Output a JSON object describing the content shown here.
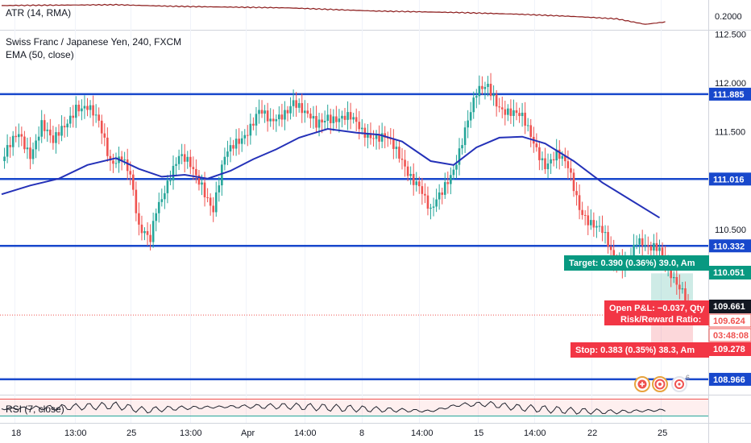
{
  "panes": {
    "atr_label": "ATR (14, RMA)",
    "main_title": "Swiss Franc / Japanese Yen, 240, FXCM",
    "ema_label": "EMA (50, close)",
    "rsi_label": "RSI (7, close)"
  },
  "colors": {
    "up": "#26a69a",
    "down": "#ef5350",
    "level_line": "#1848cc",
    "ema": "#2431b8",
    "atr": "#8b1a1a",
    "rsi": "#1e222d",
    "target_green": "#089981",
    "stop_red": "#f23645",
    "price_tag": "#131722"
  },
  "atr": {
    "axis_label": "0.2000"
  },
  "price_axis": {
    "ticks": [
      "112.500",
      "112.000",
      "111.500",
      "110.500"
    ]
  },
  "levels": [
    {
      "value": 111.885,
      "label": "111.885"
    },
    {
      "value": 111.016,
      "label": "111.016"
    },
    {
      "value": 110.332,
      "label": "110.332"
    },
    {
      "value": 108.966,
      "label": "108.966"
    }
  ],
  "position": {
    "target_text": "Target: 0.390 (0.36%) 39.0, Am",
    "target_price": "110.051",
    "pnl_text": "Open P&L: −0.037, Qty",
    "rr_text": "Risk/Reward Ratio: ",
    "entry_price": "109.661",
    "current_price": "109.624",
    "countdown": "03:48:08",
    "stop_text": "Stop: 0.383 (0.35%) 38.3, Am",
    "stop_price": "109.278"
  },
  "time_axis": {
    "labels": [
      "18",
      "13:00",
      "25",
      "13:00",
      "Apr",
      "14:00",
      "8",
      "14:00",
      "15",
      "14:00",
      "22",
      "25"
    ]
  },
  "chart_data": {
    "type": "candlestick",
    "title": "Swiss Franc / Japanese Yen, 240, FXCM",
    "y_range": [
      108.85,
      112.75
    ],
    "y_ticks": [
      112.5,
      112.0,
      111.5,
      110.5
    ],
    "horizontal_levels": [
      111.885,
      111.016,
      110.332,
      108.966
    ],
    "last_price": 109.624,
    "position": {
      "entry": 109.661,
      "target": 110.051,
      "stop": 109.278
    },
    "close_path": [
      [
        0,
        111.2
      ],
      [
        6,
        111.45
      ],
      [
        10,
        111.3
      ],
      [
        14,
        111.6
      ],
      [
        18,
        111.35
      ],
      [
        22,
        111.55
      ],
      [
        26,
        111.8
      ],
      [
        30,
        111.75
      ],
      [
        34,
        111.55
      ],
      [
        38,
        111.2
      ],
      [
        42,
        111.3
      ],
      [
        45,
        111.05
      ],
      [
        48,
        110.45
      ],
      [
        52,
        110.4
      ],
      [
        54,
        110.75
      ],
      [
        58,
        111.0
      ],
      [
        62,
        111.2
      ],
      [
        66,
        111.15
      ],
      [
        70,
        111.0
      ],
      [
        74,
        110.7
      ],
      [
        78,
        111.2
      ],
      [
        82,
        111.4
      ],
      [
        86,
        111.55
      ],
      [
        90,
        111.7
      ],
      [
        94,
        111.55
      ],
      [
        98,
        111.7
      ],
      [
        102,
        111.85
      ],
      [
        106,
        111.65
      ],
      [
        110,
        111.55
      ],
      [
        114,
        111.7
      ],
      [
        118,
        111.65
      ],
      [
        122,
        111.6
      ],
      [
        126,
        111.5
      ],
      [
        130,
        111.5
      ],
      [
        134,
        111.45
      ],
      [
        138,
        111.25
      ],
      [
        142,
        111.1
      ],
      [
        146,
        111.0
      ],
      [
        150,
        110.65
      ],
      [
        154,
        110.85
      ],
      [
        158,
        111.15
      ],
      [
        162,
        111.55
      ],
      [
        166,
        111.85
      ],
      [
        170,
        111.95
      ],
      [
        174,
        111.8
      ],
      [
        178,
        111.7
      ],
      [
        182,
        111.6
      ],
      [
        186,
        111.4
      ],
      [
        190,
        111.2
      ],
      [
        194,
        111.25
      ],
      [
        198,
        111.1
      ],
      [
        202,
        110.75
      ],
      [
        206,
        110.6
      ],
      [
        210,
        110.45
      ],
      [
        214,
        110.15
      ],
      [
        218,
        110.2
      ],
      [
        222,
        110.4
      ],
      [
        226,
        110.25
      ],
      [
        230,
        110.3
      ],
      [
        234,
        110.1
      ],
      [
        238,
        109.85
      ],
      [
        240,
        109.62
      ]
    ],
    "ema_path": [
      [
        0,
        110.86
      ],
      [
        10,
        110.95
      ],
      [
        20,
        111.02
      ],
      [
        30,
        111.16
      ],
      [
        40,
        111.23
      ],
      [
        48,
        111.12
      ],
      [
        56,
        111.04
      ],
      [
        64,
        111.06
      ],
      [
        72,
        111.02
      ],
      [
        80,
        111.1
      ],
      [
        88,
        111.22
      ],
      [
        96,
        111.32
      ],
      [
        104,
        111.44
      ],
      [
        114,
        111.53
      ],
      [
        124,
        111.49
      ],
      [
        132,
        111.47
      ],
      [
        140,
        111.4
      ],
      [
        150,
        111.2
      ],
      [
        158,
        111.16
      ],
      [
        166,
        111.34
      ],
      [
        174,
        111.44
      ],
      [
        182,
        111.45
      ],
      [
        190,
        111.38
      ],
      [
        200,
        111.2
      ],
      [
        210,
        110.98
      ],
      [
        220,
        110.8
      ],
      [
        230,
        110.62
      ]
    ],
    "atr_path": [
      [
        0,
        0.22
      ],
      [
        40,
        0.221
      ],
      [
        60,
        0.219
      ],
      [
        100,
        0.217
      ],
      [
        130,
        0.213
      ],
      [
        160,
        0.211
      ],
      [
        180,
        0.209
      ],
      [
        200,
        0.206
      ],
      [
        215,
        0.203
      ],
      [
        225,
        0.196
      ],
      [
        232,
        0.199
      ]
    ],
    "rsi_path": [
      [
        0,
        50
      ],
      [
        20,
        55
      ],
      [
        40,
        62
      ],
      [
        50,
        44
      ],
      [
        60,
        52
      ],
      [
        80,
        58
      ],
      [
        100,
        60
      ],
      [
        110,
        56
      ],
      [
        130,
        48
      ],
      [
        150,
        41
      ],
      [
        160,
        65
      ],
      [
        170,
        68
      ],
      [
        180,
        55
      ],
      [
        200,
        42
      ],
      [
        215,
        38
      ],
      [
        225,
        43
      ],
      [
        232,
        45
      ]
    ]
  }
}
